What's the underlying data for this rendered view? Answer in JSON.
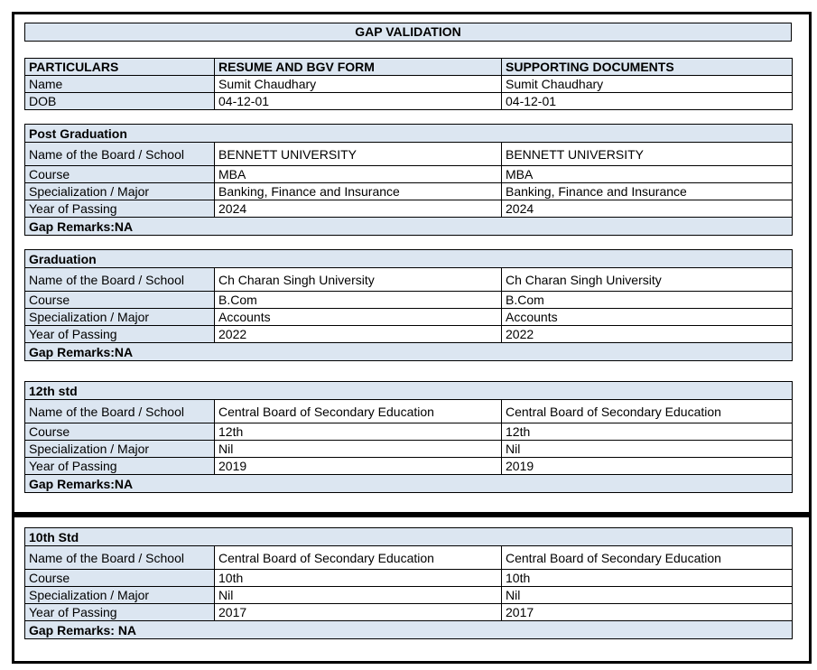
{
  "page_title": "GAP VALIDATION",
  "colors": {
    "highlight_bg": "#DCE6F1",
    "border": "#000000",
    "text": "#000000",
    "page_bg": "#FFFFFF"
  },
  "header_table": {
    "columns": [
      "PARTICULARS",
      "RESUME AND BGV FORM",
      "SUPPORTING DOCUMENTS"
    ],
    "rows": [
      {
        "label": "Name",
        "resume_value": "Sumit Chaudhary",
        "supporting_value": "Sumit Chaudhary"
      },
      {
        "label": "DOB",
        "resume_value": "04-12-01",
        "supporting_value": "04-12-01"
      }
    ]
  },
  "sections": [
    {
      "title": "Post Graduation",
      "rows": [
        {
          "label": "Name of the Board / School",
          "resume_value": "BENNETT UNIVERSITY",
          "supporting_value": "BENNETT UNIVERSITY"
        },
        {
          "label": "Course",
          "resume_value": "MBA",
          "supporting_value": "MBA"
        },
        {
          "label": "Specialization / Major",
          "resume_value": "Banking, Finance and Insurance",
          "supporting_value": "Banking, Finance and Insurance"
        },
        {
          "label": "Year of Passing",
          "resume_value": "2024",
          "supporting_value": "2024"
        }
      ],
      "gap_remarks": "Gap Remarks:NA"
    },
    {
      "title": "Graduation",
      "rows": [
        {
          "label": "Name of the Board / School",
          "resume_value": "Ch Charan Singh University",
          "supporting_value": "Ch Charan Singh University"
        },
        {
          "label": "Course",
          "resume_value": "B.Com",
          "supporting_value": "B.Com"
        },
        {
          "label": "Specialization / Major",
          "resume_value": "Accounts",
          "supporting_value": "Accounts"
        },
        {
          "label": "Year of Passing",
          "resume_value": "2022",
          "supporting_value": "2022"
        }
      ],
      "gap_remarks": "Gap Remarks:NA"
    },
    {
      "title": "12th std",
      "rows": [
        {
          "label": "Name of the Board / School",
          "resume_value": "Central Board of Secondary Education",
          "supporting_value": "Central Board of Secondary Education"
        },
        {
          "label": "Course",
          "resume_value": "12th",
          "supporting_value": "12th"
        },
        {
          "label": "Specialization / Major",
          "resume_value": "Nil",
          "supporting_value": "Nil"
        },
        {
          "label": "Year of Passing",
          "resume_value": "2019",
          "supporting_value": "2019"
        }
      ],
      "gap_remarks": "Gap Remarks:NA"
    },
    {
      "title": "10th Std",
      "rows": [
        {
          "label": "Name of the Board / School",
          "resume_value": "Central Board of Secondary Education",
          "supporting_value": "Central Board of Secondary Education"
        },
        {
          "label": "Course",
          "resume_value": "10th",
          "supporting_value": "10th"
        },
        {
          "label": "Specialization / Major",
          "resume_value": "Nil",
          "supporting_value": "Nil"
        },
        {
          "label": "Year of Passing",
          "resume_value": "2017",
          "supporting_value": "2017"
        }
      ],
      "gap_remarks": "Gap Remarks: NA"
    }
  ]
}
